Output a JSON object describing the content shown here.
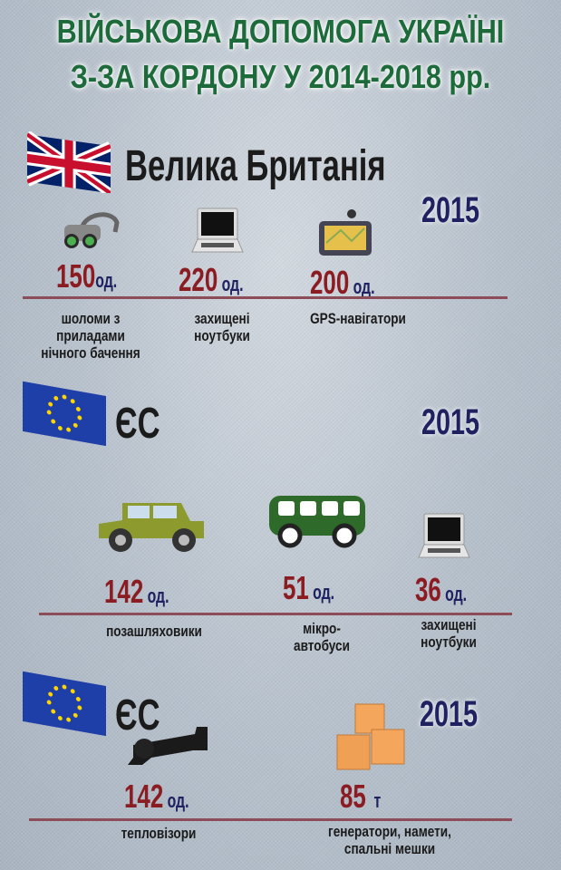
{
  "title": {
    "line1": "ВІЙСЬКОВА ДОПОМОГА УКРАЇНІ",
    "line2": "З-ЗА КОРДОНУ У 2014-2018 рр."
  },
  "sections": [
    {
      "country": "Велика Британія",
      "flag": "uk-flag",
      "year": "2015",
      "items": [
        {
          "icon": "night-vision-goggles-icon",
          "value": "150",
          "unit": "од.",
          "label": "шоломи з приладами нічного бачення"
        },
        {
          "icon": "laptop-icon",
          "value": "220",
          "unit": "од.",
          "label": "захищені ноутбуки"
        },
        {
          "icon": "gps-navigator-icon",
          "value": "200",
          "unit": "од.",
          "label": "GPS-навігатори"
        }
      ]
    },
    {
      "country": "ЄС",
      "flag": "eu-flag",
      "year": "2015",
      "items": [
        {
          "icon": "jeep-icon",
          "value": "142",
          "unit": "од.",
          "label": "позашляховики"
        },
        {
          "icon": "minibus-icon",
          "value": "51",
          "unit": "од.",
          "label": "мікро-автобуси"
        },
        {
          "icon": "laptop-icon",
          "value": "36",
          "unit": "од.",
          "label": "захищені ноутбуки"
        }
      ]
    },
    {
      "country": "ЄС",
      "flag": "eu-flag",
      "year": "2015",
      "items": [
        {
          "icon": "thermal-scope-icon",
          "value": "142",
          "unit": "од.",
          "label": "тепловізори"
        },
        {
          "icon": "boxes-icon",
          "value": "85",
          "unit": "т",
          "label": "генератори, намети, спальні мешки"
        }
      ]
    }
  ],
  "colors": {
    "title": "#1d6a3a",
    "value": "#8b1c22",
    "unit": "#1f2160",
    "divider": "#8c4c58"
  }
}
